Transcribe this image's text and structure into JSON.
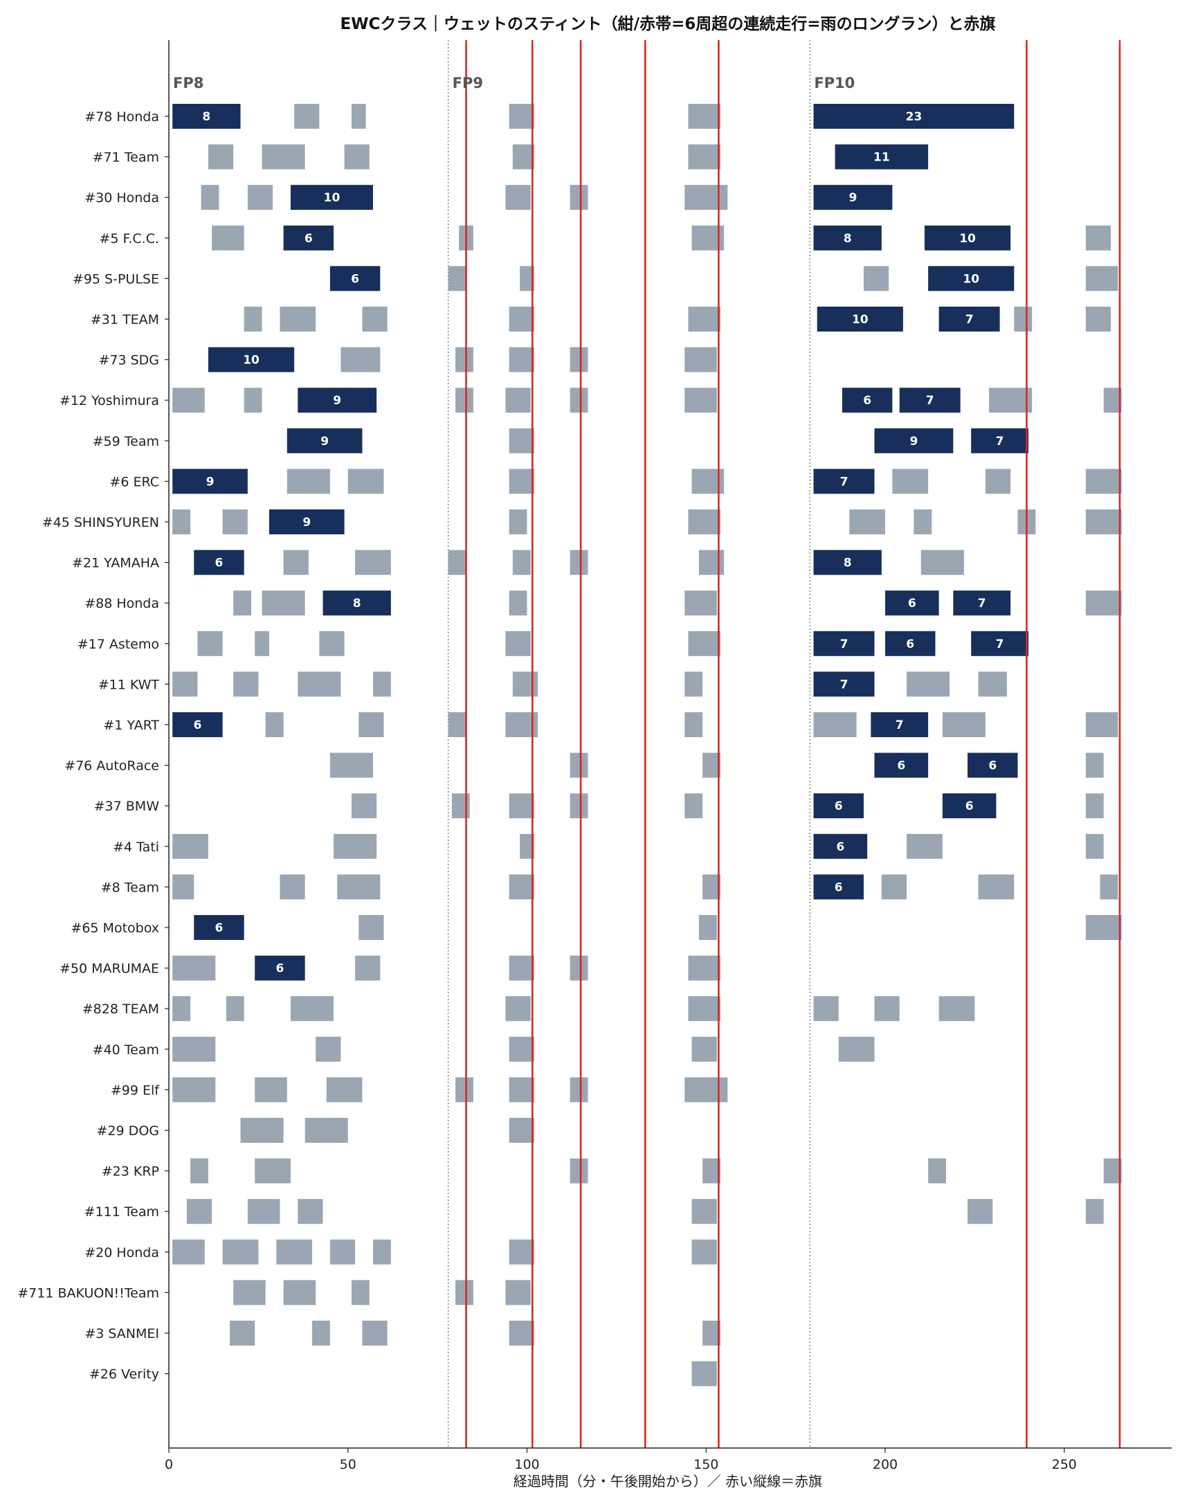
{
  "chart_data": {
    "type": "gantt",
    "title": "EWCクラス｜ウェットのスティント（紺/赤帯=6周超の連続走行=雨のロングラン）と赤旗",
    "xlabel": "経過時間（分・午後開始から）／ 赤い縦線＝赤旗",
    "ylabel": "",
    "xlim": [
      0,
      280
    ],
    "xticks": [
      0,
      50,
      100,
      150,
      200,
      250
    ],
    "colors": {
      "long_run": "#172f5a",
      "short_run": "#9ba6b3",
      "red_flag": "#d62728",
      "session_divider": "#888888"
    },
    "sessions": [
      {
        "label": "FP8",
        "start": 0
      },
      {
        "label": "FP9",
        "start": 78
      },
      {
        "label": "FP10",
        "start": 179
      }
    ],
    "red_flags": [
      83,
      101.5,
      115,
      133,
      153.5,
      239.5,
      265.5
    ],
    "teams": [
      {
        "name": "#78 Honda",
        "stints": [
          [
            1,
            20,
            8
          ],
          [
            35,
            42,
            0
          ],
          [
            51,
            55,
            0
          ],
          [
            95,
            102,
            0
          ],
          [
            145,
            154,
            0
          ],
          [
            180,
            236,
            23
          ]
        ]
      },
      {
        "name": "#71 Team",
        "stints": [
          [
            11,
            18,
            0
          ],
          [
            26,
            38,
            0
          ],
          [
            49,
            56,
            0
          ],
          [
            96,
            102,
            0
          ],
          [
            145,
            154,
            0
          ],
          [
            186,
            212,
            11
          ]
        ]
      },
      {
        "name": "#30 Honda",
        "stints": [
          [
            9,
            14,
            0
          ],
          [
            22,
            29,
            0
          ],
          [
            34,
            57,
            10
          ],
          [
            94,
            101,
            0
          ],
          [
            112,
            117,
            0
          ],
          [
            144,
            156,
            0
          ],
          [
            180,
            202,
            9
          ]
        ]
      },
      {
        "name": "#5 F.C.C.",
        "stints": [
          [
            12,
            21,
            0
          ],
          [
            32,
            46,
            6
          ],
          [
            81,
            85,
            0
          ],
          [
            146,
            155,
            0
          ],
          [
            180,
            199,
            8
          ],
          [
            211,
            235,
            10
          ],
          [
            256,
            263,
            0
          ]
        ]
      },
      {
        "name": "#95 S-PULSE",
        "stints": [
          [
            45,
            59,
            6
          ],
          [
            78,
            83,
            0
          ],
          [
            98,
            102,
            0
          ],
          [
            194,
            201,
            0
          ],
          [
            212,
            236,
            10
          ],
          [
            256,
            265,
            0
          ]
        ]
      },
      {
        "name": "#31 TEAM",
        "stints": [
          [
            21,
            26,
            0
          ],
          [
            31,
            41,
            0
          ],
          [
            54,
            61,
            0
          ],
          [
            95,
            102,
            0
          ],
          [
            145,
            154,
            0
          ],
          [
            181,
            205,
            10
          ],
          [
            215,
            232,
            7
          ],
          [
            236,
            241,
            0
          ],
          [
            256,
            263,
            0
          ]
        ]
      },
      {
        "name": "#73 SDG",
        "stints": [
          [
            11,
            35,
            10
          ],
          [
            48,
            59,
            0
          ],
          [
            80,
            85,
            0
          ],
          [
            95,
            102,
            0
          ],
          [
            112,
            117,
            0
          ],
          [
            144,
            153,
            0
          ]
        ]
      },
      {
        "name": "#12 Yoshimura",
        "stints": [
          [
            1,
            10,
            0
          ],
          [
            21,
            26,
            0
          ],
          [
            36,
            58,
            9
          ],
          [
            80,
            85,
            0
          ],
          [
            94,
            101,
            0
          ],
          [
            112,
            117,
            0
          ],
          [
            144,
            153,
            0
          ],
          [
            188,
            202,
            6
          ],
          [
            204,
            221,
            7
          ],
          [
            229,
            241,
            0
          ],
          [
            261,
            266,
            0
          ]
        ]
      },
      {
        "name": "#59 Team",
        "stints": [
          [
            33,
            54,
            9
          ],
          [
            95,
            102,
            0
          ],
          [
            197,
            219,
            9
          ],
          [
            224,
            240,
            7
          ]
        ]
      },
      {
        "name": "#6 ERC",
        "stints": [
          [
            1,
            22,
            9
          ],
          [
            33,
            45,
            0
          ],
          [
            50,
            60,
            0
          ],
          [
            95,
            102,
            0
          ],
          [
            146,
            155,
            0
          ],
          [
            180,
            197,
            7
          ],
          [
            202,
            212,
            0
          ],
          [
            228,
            235,
            0
          ],
          [
            256,
            266,
            0
          ]
        ]
      },
      {
        "name": "#45 SHINSYUREN",
        "stints": [
          [
            1,
            6,
            0
          ],
          [
            15,
            22,
            0
          ],
          [
            28,
            49,
            9
          ],
          [
            95,
            100,
            0
          ],
          [
            145,
            154,
            0
          ],
          [
            190,
            200,
            0
          ],
          [
            208,
            213,
            0
          ],
          [
            237,
            242,
            0
          ],
          [
            256,
            266,
            0
          ]
        ]
      },
      {
        "name": "#21 YAMAHA",
        "stints": [
          [
            7,
            21,
            6
          ],
          [
            32,
            39,
            0
          ],
          [
            52,
            62,
            0
          ],
          [
            78,
            83,
            0
          ],
          [
            96,
            101,
            0
          ],
          [
            112,
            117,
            0
          ],
          [
            148,
            155,
            0
          ],
          [
            180,
            199,
            8
          ],
          [
            210,
            222,
            0
          ]
        ]
      },
      {
        "name": "#88 Honda",
        "stints": [
          [
            18,
            23,
            0
          ],
          [
            26,
            38,
            0
          ],
          [
            43,
            62,
            8
          ],
          [
            95,
            100,
            0
          ],
          [
            144,
            153,
            0
          ],
          [
            200,
            215,
            6
          ],
          [
            219,
            235,
            7
          ],
          [
            256,
            266,
            0
          ]
        ]
      },
      {
        "name": "#17 Astemo",
        "stints": [
          [
            8,
            15,
            0
          ],
          [
            24,
            28,
            0
          ],
          [
            42,
            49,
            0
          ],
          [
            94,
            101,
            0
          ],
          [
            145,
            154,
            0
          ],
          [
            180,
            197,
            7
          ],
          [
            200,
            214,
            6
          ],
          [
            224,
            240,
            7
          ]
        ]
      },
      {
        "name": "#11 KWT",
        "stints": [
          [
            1,
            8,
            0
          ],
          [
            18,
            25,
            0
          ],
          [
            36,
            48,
            0
          ],
          [
            57,
            62,
            0
          ],
          [
            96,
            103,
            0
          ],
          [
            144,
            149,
            0
          ],
          [
            180,
            197,
            7
          ],
          [
            206,
            218,
            0
          ],
          [
            226,
            234,
            0
          ]
        ]
      },
      {
        "name": "#1 YART",
        "stints": [
          [
            1,
            15,
            6
          ],
          [
            27,
            32,
            0
          ],
          [
            53,
            60,
            0
          ],
          [
            78,
            83,
            0
          ],
          [
            94,
            103,
            0
          ],
          [
            144,
            149,
            0
          ],
          [
            180,
            192,
            0
          ],
          [
            196,
            212,
            7
          ],
          [
            216,
            228,
            0
          ],
          [
            256,
            265,
            0
          ]
        ]
      },
      {
        "name": "#76 AutoRace",
        "stints": [
          [
            45,
            57,
            0
          ],
          [
            112,
            117,
            0
          ],
          [
            149,
            154,
            0
          ],
          [
            197,
            212,
            6
          ],
          [
            223,
            237,
            6
          ],
          [
            256,
            261,
            0
          ]
        ]
      },
      {
        "name": "#37 BMW",
        "stints": [
          [
            51,
            58,
            0
          ],
          [
            79,
            84,
            0
          ],
          [
            95,
            102,
            0
          ],
          [
            112,
            117,
            0
          ],
          [
            144,
            149,
            0
          ],
          [
            180,
            194,
            6
          ],
          [
            216,
            231,
            6
          ],
          [
            256,
            261,
            0
          ]
        ]
      },
      {
        "name": "#4 Tati",
        "stints": [
          [
            1,
            11,
            0
          ],
          [
            46,
            58,
            0
          ],
          [
            98,
            102,
            0
          ],
          [
            180,
            195,
            6
          ],
          [
            206,
            216,
            0
          ],
          [
            256,
            261,
            0
          ]
        ]
      },
      {
        "name": "#8 Team",
        "stints": [
          [
            1,
            7,
            0
          ],
          [
            31,
            38,
            0
          ],
          [
            47,
            59,
            0
          ],
          [
            95,
            102,
            0
          ],
          [
            149,
            154,
            0
          ],
          [
            180,
            194,
            6
          ],
          [
            199,
            206,
            0
          ],
          [
            226,
            236,
            0
          ],
          [
            260,
            265,
            0
          ]
        ]
      },
      {
        "name": "#65 Motobox",
        "stints": [
          [
            7,
            21,
            6
          ],
          [
            53,
            60,
            0
          ],
          [
            148,
            153,
            0
          ],
          [
            256,
            266,
            0
          ]
        ]
      },
      {
        "name": "#50 MARUMAE",
        "stints": [
          [
            1,
            13,
            0
          ],
          [
            24,
            38,
            6
          ],
          [
            52,
            59,
            0
          ],
          [
            95,
            102,
            0
          ],
          [
            112,
            117,
            0
          ],
          [
            145,
            154,
            0
          ]
        ]
      },
      {
        "name": "#828 TEAM",
        "stints": [
          [
            1,
            6,
            0
          ],
          [
            16,
            21,
            0
          ],
          [
            34,
            46,
            0
          ],
          [
            94,
            101,
            0
          ],
          [
            145,
            154,
            0
          ],
          [
            180,
            187,
            0
          ],
          [
            197,
            204,
            0
          ],
          [
            215,
            225,
            0
          ]
        ]
      },
      {
        "name": "#40 Team",
        "stints": [
          [
            1,
            13,
            0
          ],
          [
            41,
            48,
            0
          ],
          [
            95,
            102,
            0
          ],
          [
            146,
            153,
            0
          ],
          [
            187,
            197,
            0
          ]
        ]
      },
      {
        "name": "#99 Elf",
        "stints": [
          [
            1,
            13,
            0
          ],
          [
            24,
            33,
            0
          ],
          [
            44,
            54,
            0
          ],
          [
            80,
            85,
            0
          ],
          [
            95,
            102,
            0
          ],
          [
            112,
            117,
            0
          ],
          [
            144,
            156,
            0
          ]
        ]
      },
      {
        "name": "#29 DOG",
        "stints": [
          [
            20,
            32,
            0
          ],
          [
            38,
            50,
            0
          ],
          [
            95,
            102,
            0
          ]
        ]
      },
      {
        "name": "#23 KRP",
        "stints": [
          [
            6,
            11,
            0
          ],
          [
            24,
            34,
            0
          ],
          [
            112,
            117,
            0
          ],
          [
            149,
            154,
            0
          ],
          [
            212,
            217,
            0
          ],
          [
            261,
            266,
            0
          ]
        ]
      },
      {
        "name": "#111 Team",
        "stints": [
          [
            5,
            12,
            0
          ],
          [
            22,
            31,
            0
          ],
          [
            36,
            43,
            0
          ],
          [
            146,
            153,
            0
          ],
          [
            223,
            230,
            0
          ],
          [
            256,
            261,
            0
          ]
        ]
      },
      {
        "name": "#20 Honda",
        "stints": [
          [
            1,
            10,
            0
          ],
          [
            15,
            25,
            0
          ],
          [
            30,
            40,
            0
          ],
          [
            45,
            52,
            0
          ],
          [
            57,
            62,
            0
          ],
          [
            95,
            102,
            0
          ],
          [
            146,
            153,
            0
          ]
        ]
      },
      {
        "name": "#711 BAKUON!!Team",
        "stints": [
          [
            18,
            27,
            0
          ],
          [
            32,
            41,
            0
          ],
          [
            51,
            56,
            0
          ],
          [
            80,
            85,
            0
          ],
          [
            94,
            101,
            0
          ]
        ]
      },
      {
        "name": "#3 SANMEI",
        "stints": [
          [
            17,
            24,
            0
          ],
          [
            40,
            45,
            0
          ],
          [
            54,
            61,
            0
          ],
          [
            95,
            102,
            0
          ],
          [
            149,
            154,
            0
          ]
        ]
      },
      {
        "name": "#26 Verity",
        "stints": [
          [
            146,
            153,
            0
          ]
        ]
      }
    ]
  }
}
